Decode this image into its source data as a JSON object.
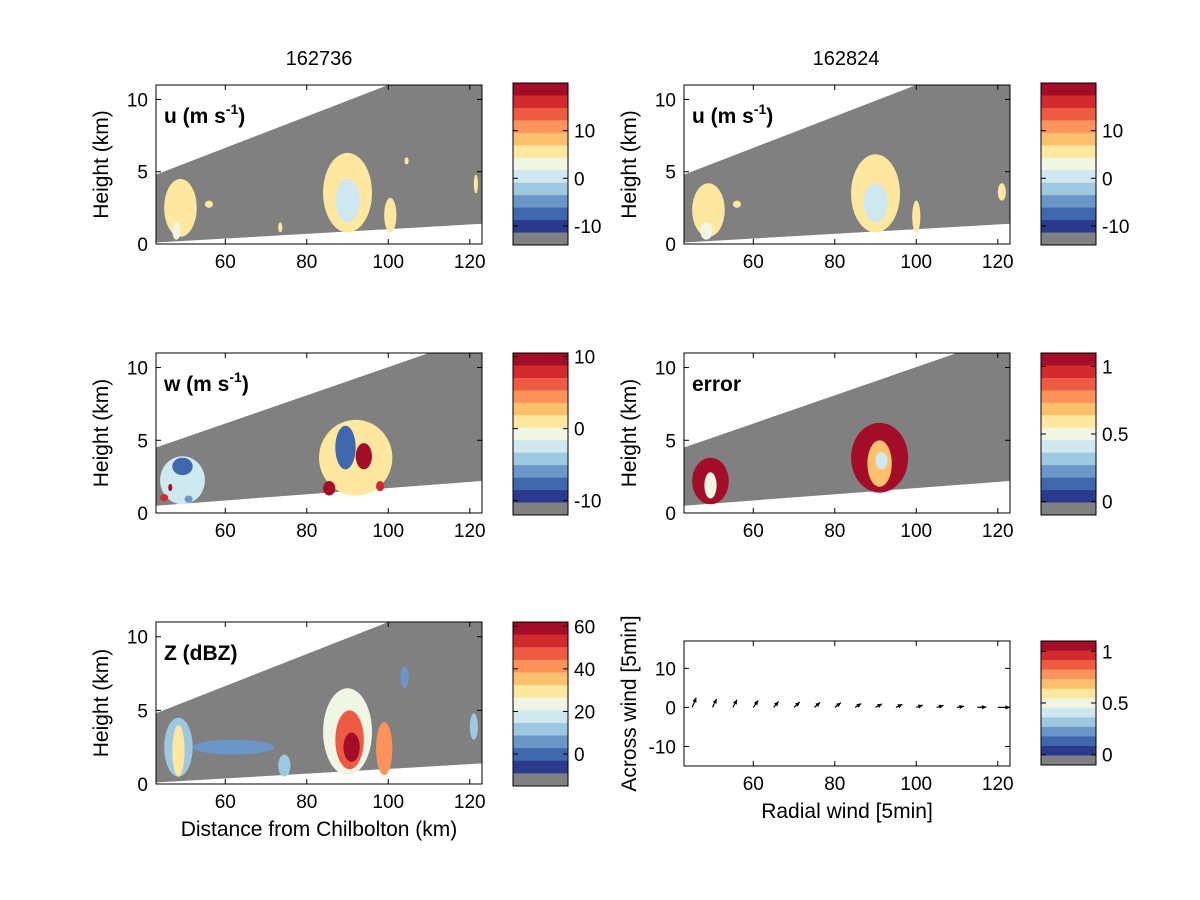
{
  "column_titles": [
    "162736",
    "162824"
  ],
  "colormap": [
    "#808080",
    "#2c3a8e",
    "#3f67ad",
    "#6a97c7",
    "#9ec8e0",
    "#cfe8f0",
    "#f1f5e3",
    "#fee8a0",
    "#fdc06d",
    "#fb935b",
    "#ed5b43",
    "#d12b2c",
    "#a30d27"
  ],
  "chart_data": [
    {
      "id": "u-left",
      "type": "heatmap",
      "label": "u (m s",
      "label_sup": "-1",
      "label_close": ")",
      "ylabel": "Height (km)",
      "xlabel": "",
      "xlim": [
        43,
        123
      ],
      "ylim": [
        0,
        11
      ],
      "xticks": [
        60,
        80,
        100,
        120
      ],
      "yticks": [
        0,
        5,
        10
      ],
      "beam_top": [
        [
          43,
          4.8
        ],
        [
          100,
          11
        ]
      ],
      "beam_bottom": [
        [
          43,
          0.1
        ],
        [
          123,
          1.4
        ]
      ],
      "blobs": [
        {
          "x": [
            45,
            53
          ],
          "y": [
            0.5,
            4.5
          ],
          "value": 4
        },
        {
          "x": [
            47,
            49
          ],
          "y": [
            0.3,
            1.5
          ],
          "value": 1
        },
        {
          "x": [
            55,
            57
          ],
          "y": [
            2.5,
            3.0
          ],
          "value": 5
        },
        {
          "x": [
            73,
            74
          ],
          "y": [
            0.8,
            1.5
          ],
          "value": 5
        },
        {
          "x": [
            84,
            96
          ],
          "y": [
            0.8,
            6.3
          ],
          "value": 3
        },
        {
          "x": [
            87,
            93
          ],
          "y": [
            1.5,
            4.5
          ],
          "value": -1
        },
        {
          "x": [
            99,
            102
          ],
          "y": [
            0.8,
            3.2
          ],
          "value": 4
        },
        {
          "x": [
            104,
            105
          ],
          "y": [
            5.5,
            6.0
          ],
          "value": 3
        },
        {
          "x": [
            121,
            122
          ],
          "y": [
            3.5,
            4.8
          ],
          "value": 5
        }
      ],
      "colorbar": {
        "ticks": [
          "10",
          "0",
          "-10"
        ],
        "tick_values": [
          10,
          0,
          -10
        ],
        "range": [
          -14,
          20
        ]
      }
    },
    {
      "id": "u-right",
      "type": "heatmap",
      "label": "u (m s",
      "label_sup": "-1",
      "label_close": ")",
      "ylabel": "Height (km)",
      "xlabel": "",
      "xlim": [
        43,
        123
      ],
      "ylim": [
        0,
        11
      ],
      "xticks": [
        60,
        80,
        100,
        120
      ],
      "yticks": [
        0,
        5,
        10
      ],
      "beam_top": [
        [
          43,
          4.8
        ],
        [
          100,
          11
        ]
      ],
      "beam_bottom": [
        [
          43,
          0.1
        ],
        [
          123,
          1.4
        ]
      ],
      "blobs": [
        {
          "x": [
            45,
            53
          ],
          "y": [
            0.5,
            4.2
          ],
          "value": 4
        },
        {
          "x": [
            47,
            50
          ],
          "y": [
            0.3,
            1.5
          ],
          "value": 1
        },
        {
          "x": [
            55,
            57
          ],
          "y": [
            2.5,
            3.0
          ],
          "value": 5
        },
        {
          "x": [
            84,
            96
          ],
          "y": [
            0.8,
            6.2
          ],
          "value": 3
        },
        {
          "x": [
            87,
            93
          ],
          "y": [
            1.5,
            4.2
          ],
          "value": -1
        },
        {
          "x": [
            99,
            101
          ],
          "y": [
            0.8,
            3.0
          ],
          "value": 4
        },
        {
          "x": [
            120,
            122
          ],
          "y": [
            3.0,
            4.2
          ],
          "value": 5
        }
      ],
      "colorbar": {
        "ticks": [
          "10",
          "0",
          "-10"
        ],
        "tick_values": [
          10,
          0,
          -10
        ],
        "range": [
          -14,
          20
        ]
      }
    },
    {
      "id": "w-left",
      "type": "heatmap",
      "label": "w (m s",
      "label_sup": "-1",
      "label_close": ")",
      "ylabel": "Height (km)",
      "xlabel": "",
      "xlim": [
        43,
        123
      ],
      "ylim": [
        0,
        11
      ],
      "xticks": [
        60,
        80,
        100,
        120
      ],
      "yticks": [
        0,
        5,
        10
      ],
      "beam_top": [
        [
          43,
          4.5
        ],
        [
          110,
          11
        ]
      ],
      "beam_bottom": [
        [
          43,
          0.5
        ],
        [
          123,
          2.2
        ]
      ],
      "blobs": [
        {
          "x": [
            44,
            55
          ],
          "y": [
            0.6,
            3.9
          ],
          "value": -3
        },
        {
          "x": [
            47,
            52
          ],
          "y": [
            2.6,
            3.8
          ],
          "value": -10
        },
        {
          "x": [
            46,
            47
          ],
          "y": [
            1.5,
            2.0
          ],
          "value": 9
        },
        {
          "x": [
            44,
            46
          ],
          "y": [
            0.8,
            1.3
          ],
          "value": 8
        },
        {
          "x": [
            50,
            52
          ],
          "y": [
            0.7,
            1.2
          ],
          "value": -8
        },
        {
          "x": [
            83,
            101
          ],
          "y": [
            1.2,
            6.4
          ],
          "value": 1
        },
        {
          "x": [
            87,
            92
          ],
          "y": [
            3.0,
            6.0
          ],
          "value": -10
        },
        {
          "x": [
            92,
            96
          ],
          "y": [
            3.0,
            4.8
          ],
          "value": 10
        },
        {
          "x": [
            84,
            87
          ],
          "y": [
            1.2,
            2.2
          ],
          "value": 9
        },
        {
          "x": [
            97,
            99
          ],
          "y": [
            1.5,
            2.2
          ],
          "value": 8
        }
      ],
      "colorbar": {
        "ticks": [
          "10",
          "0",
          "-10"
        ],
        "tick_values": [
          10,
          0,
          -10
        ],
        "range": [
          -12,
          10.5
        ]
      }
    },
    {
      "id": "error",
      "type": "heatmap",
      "label": "error",
      "ylabel": "Height (km)",
      "xlabel": "",
      "xlim": [
        43,
        123
      ],
      "ylim": [
        0,
        11
      ],
      "xticks": [
        60,
        80,
        100,
        120
      ],
      "yticks": [
        0,
        5,
        10
      ],
      "beam_top": [
        [
          43,
          4.5
        ],
        [
          110,
          11
        ]
      ],
      "beam_bottom": [
        [
          43,
          0.5
        ],
        [
          123,
          2.2
        ]
      ],
      "blobs": [
        {
          "x": [
            45,
            54
          ],
          "y": [
            0.6,
            3.8
          ],
          "value": 1.0
        },
        {
          "x": [
            48,
            51
          ],
          "y": [
            1.0,
            2.8
          ],
          "value": 0.4
        },
        {
          "x": [
            84,
            98
          ],
          "y": [
            1.4,
            6.2
          ],
          "value": 1.0
        },
        {
          "x": [
            88,
            94
          ],
          "y": [
            1.8,
            5.0
          ],
          "value": 0.65
        },
        {
          "x": [
            90,
            93
          ],
          "y": [
            3.0,
            4.2
          ],
          "value": 0.3
        }
      ],
      "colorbar": {
        "ticks": [
          "1",
          "0.5",
          "0"
        ],
        "tick_values": [
          1,
          0.5,
          0
        ],
        "range": [
          -0.1,
          1.1
        ]
      }
    },
    {
      "id": "Z",
      "type": "heatmap",
      "label": "Z (dBZ)",
      "ylabel": "Height (km)",
      "xlabel": "Distance from Chilbolton (km)",
      "xlim": [
        43,
        123
      ],
      "ylim": [
        0,
        11
      ],
      "xticks": [
        60,
        80,
        100,
        120
      ],
      "yticks": [
        0,
        5,
        10
      ],
      "beam_top": [
        [
          43,
          4.8
        ],
        [
          100,
          11
        ]
      ],
      "beam_bottom": [
        [
          43,
          0.1
        ],
        [
          123,
          1.4
        ]
      ],
      "blobs": [
        {
          "x": [
            45,
            52
          ],
          "y": [
            0.5,
            4.5
          ],
          "value": 5
        },
        {
          "x": [
            47,
            50
          ],
          "y": [
            0.5,
            4.0
          ],
          "value": 28
        },
        {
          "x": [
            52,
            72
          ],
          "y": [
            2.0,
            3.0
          ],
          "value": -2
        },
        {
          "x": [
            73,
            76
          ],
          "y": [
            0.5,
            2.0
          ],
          "value": 10
        },
        {
          "x": [
            84,
            96
          ],
          "y": [
            0.6,
            6.5
          ],
          "value": 22
        },
        {
          "x": [
            87,
            94
          ],
          "y": [
            1.0,
            5.0
          ],
          "value": 45
        },
        {
          "x": [
            89,
            93
          ],
          "y": [
            1.5,
            3.5
          ],
          "value": 58
        },
        {
          "x": [
            97,
            101
          ],
          "y": [
            0.6,
            4.2
          ],
          "value": 38
        },
        {
          "x": [
            103,
            105
          ],
          "y": [
            6.5,
            8.0
          ],
          "value": -1
        },
        {
          "x": [
            120,
            122
          ],
          "y": [
            3.0,
            4.8
          ],
          "value": 5
        }
      ],
      "colorbar": {
        "ticks": [
          "60",
          "40",
          "20",
          "0"
        ],
        "tick_values": [
          60,
          40,
          20,
          0
        ],
        "range": [
          -15,
          62
        ]
      }
    },
    {
      "id": "wind",
      "type": "scatter",
      "label": "",
      "ylabel": "Across wind [5min]",
      "xlabel": "Radial wind [5min]",
      "xlim": [
        43,
        123
      ],
      "ylim": [
        -15,
        17
      ],
      "xticks": [
        60,
        80,
        100,
        120
      ],
      "yticks": [
        -10,
        0,
        10
      ],
      "y_tick_labels": [
        "-10",
        "0",
        "10"
      ],
      "points": [
        {
          "x": 45,
          "y": 0,
          "dx": 1.0,
          "dy": 2.5
        },
        {
          "x": 50,
          "y": 0,
          "dx": 1.0,
          "dy": 2.2
        },
        {
          "x": 55,
          "y": 0,
          "dx": 1.0,
          "dy": 2.0
        },
        {
          "x": 60,
          "y": 0,
          "dx": 1.2,
          "dy": 1.8
        },
        {
          "x": 65,
          "y": 0,
          "dx": 1.2,
          "dy": 1.5
        },
        {
          "x": 70,
          "y": 0,
          "dx": 1.4,
          "dy": 1.4
        },
        {
          "x": 75,
          "y": 0,
          "dx": 1.4,
          "dy": 1.3
        },
        {
          "x": 80,
          "y": 0,
          "dx": 1.5,
          "dy": 1.2
        },
        {
          "x": 85,
          "y": 0,
          "dx": 1.5,
          "dy": 1.0
        },
        {
          "x": 90,
          "y": 0,
          "dx": 1.6,
          "dy": 0.9
        },
        {
          "x": 95,
          "y": 0,
          "dx": 1.6,
          "dy": 0.8
        },
        {
          "x": 100,
          "y": 0,
          "dx": 1.6,
          "dy": 0.6
        },
        {
          "x": 105,
          "y": 0,
          "dx": 1.7,
          "dy": 0.5
        },
        {
          "x": 110,
          "y": 0,
          "dx": 1.7,
          "dy": 0.3
        },
        {
          "x": 115,
          "y": 0,
          "dx": 2.2,
          "dy": 0.1
        },
        {
          "x": 120,
          "y": 0,
          "dx": 3.0,
          "dy": 0.0
        }
      ],
      "colorbar": {
        "ticks": [
          "1",
          "0.5",
          "0"
        ],
        "tick_values": [
          1,
          0.5,
          0
        ],
        "range": [
          -0.1,
          1.1
        ]
      }
    }
  ]
}
